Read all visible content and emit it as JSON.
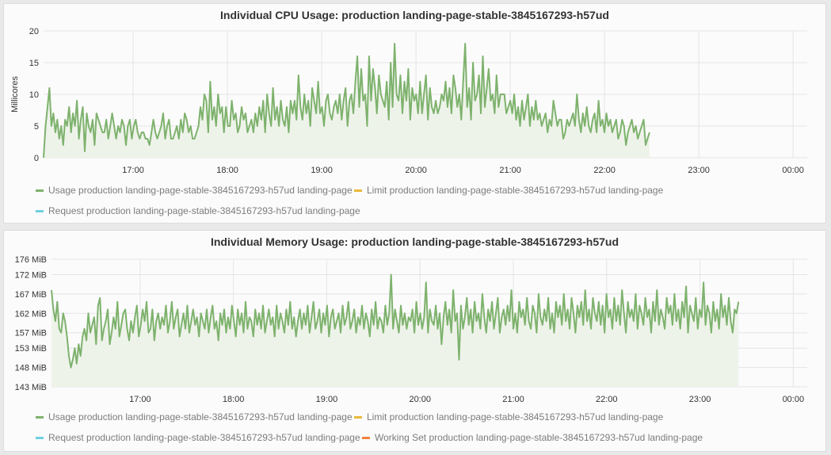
{
  "colors": {
    "usage": "#7eb26d",
    "limit": "#eab839",
    "request": "#6ed0e0",
    "working_set": "#ef843c",
    "fill": "#eef3ea",
    "grid": "#e4e4e4"
  },
  "chart_data": [
    {
      "type": "area",
      "title": "Individual CPU Usage: production landing-page-stable-3845167293-h57ud",
      "ylabel": "Millicores",
      "xlabel": "",
      "ylim": [
        0,
        20
      ],
      "yticks": [
        0,
        5,
        10,
        15,
        20
      ],
      "ytick_labels": [
        "0",
        "5",
        "10",
        "15",
        "20"
      ],
      "xlim": [
        16.05,
        24.15
      ],
      "xticks": [
        17,
        18,
        19,
        20,
        21,
        22,
        23,
        24
      ],
      "xtick_labels": [
        "17:00",
        "18:00",
        "19:00",
        "20:00",
        "21:00",
        "22:00",
        "23:00",
        "00:00"
      ],
      "grid": true,
      "legend": [
        "Usage production landing-page-stable-3845167293-h57ud landing-page",
        "Limit production landing-page-stable-3845167293-h57ud landing-page",
        "Request production landing-page-stable-3845167293-h57ud landing-page"
      ],
      "series": [
        {
          "name": "Usage production landing-page-stable-3845167293-h57ud landing-page",
          "x_start": 16.05,
          "x_step": 0.0208,
          "values": [
            0,
            5,
            8,
            11,
            5,
            7,
            4,
            6,
            3,
            5,
            2,
            6,
            5,
            8,
            4,
            7,
            5,
            9,
            3,
            6,
            8,
            1,
            7,
            5,
            4,
            6,
            2,
            7,
            6,
            5,
            4,
            4,
            6,
            3,
            5,
            7,
            5,
            3,
            5,
            4,
            6,
            5,
            2,
            5,
            6,
            3,
            5,
            6,
            4,
            3,
            4,
            4,
            3,
            3,
            2,
            4,
            6,
            4,
            3,
            4,
            5,
            7,
            3,
            5,
            6,
            3,
            3,
            4,
            5,
            3,
            6,
            4,
            7,
            6,
            4,
            5,
            3,
            3,
            4,
            5,
            8,
            6,
            10,
            9,
            4,
            12,
            6,
            8,
            5,
            10,
            7,
            8,
            4,
            8,
            5,
            5,
            9,
            6,
            7,
            4,
            5,
            8,
            6,
            7,
            4,
            5,
            6,
            4,
            7,
            5,
            8,
            6,
            9,
            4,
            10,
            7,
            5,
            11,
            6,
            8,
            5,
            9,
            6,
            5,
            8,
            4,
            9,
            7,
            9,
            6,
            13,
            8,
            6,
            10,
            7,
            9,
            5,
            11,
            9,
            7,
            12,
            7,
            8,
            5,
            9,
            10,
            7,
            6,
            8,
            9,
            7,
            10,
            6,
            9,
            11,
            5,
            9,
            10,
            7,
            12,
            16,
            8,
            14,
            9,
            10,
            5,
            16,
            9,
            14,
            11,
            7,
            13,
            10,
            9,
            8,
            12,
            6,
            15,
            8,
            18,
            10,
            9,
            13,
            7,
            12,
            9,
            14,
            6,
            11,
            9,
            10,
            7,
            12,
            7,
            10,
            13,
            6,
            11,
            8,
            7,
            9,
            7,
            8,
            10,
            9,
            12,
            8,
            11,
            7,
            13,
            11,
            8,
            10,
            6,
            12,
            18,
            8,
            11,
            6,
            15,
            9,
            10,
            13,
            7,
            16,
            8,
            11,
            14,
            9,
            10,
            7,
            13,
            8,
            10,
            10,
            10,
            7,
            8,
            9,
            7,
            10,
            6,
            8,
            5,
            9,
            6,
            8,
            10,
            5,
            8,
            6,
            9,
            6,
            7,
            5,
            6,
            7,
            4,
            6,
            5,
            9,
            7,
            5,
            6,
            6,
            3,
            4,
            6,
            5,
            6,
            7,
            5,
            10,
            6,
            4,
            7,
            5,
            8,
            5,
            4,
            6,
            7,
            4,
            9,
            5,
            6,
            4,
            7,
            5,
            6,
            4,
            5,
            6,
            3,
            4,
            6,
            5,
            2,
            4,
            5,
            6,
            4,
            5,
            3,
            4,
            5,
            6,
            2,
            3,
            4
          ]
        }
      ]
    },
    {
      "type": "area",
      "title": "Individual Memory Usage: production landing-page-stable-3845167293-h57ud",
      "ylabel": "",
      "xlabel": "",
      "ylim": [
        143,
        176
      ],
      "yticks": [
        143,
        148,
        153,
        157,
        162,
        167,
        172,
        176
      ],
      "ytick_labels": [
        "143 MiB",
        "148 MiB",
        "153 MiB",
        "157 MiB",
        "162 MiB",
        "167 MiB",
        "172 MiB",
        "176 MiB"
      ],
      "xlim": [
        16.05,
        24.15
      ],
      "xticks": [
        17,
        18,
        19,
        20,
        21,
        22,
        23,
        24
      ],
      "xtick_labels": [
        "17:00",
        "18:00",
        "19:00",
        "20:00",
        "21:00",
        "22:00",
        "23:00",
        "00:00"
      ],
      "grid": true,
      "legend": [
        "Usage production landing-page-stable-3845167293-h57ud landing-page",
        "Limit production landing-page-stable-3845167293-h57ud landing-page",
        "Request production landing-page-stable-3845167293-h57ud landing-page",
        "Working Set production landing-page-stable-3845167293-h57ud landing-page"
      ],
      "series": [
        {
          "name": "Usage production landing-page-stable-3845167293-h57ud landing-page",
          "x_start": 16.05,
          "x_step": 0.0208,
          "values": [
            168,
            163,
            160,
            165,
            158,
            157,
            162,
            160,
            156,
            151,
            148,
            150,
            153,
            149,
            154,
            151,
            156,
            158,
            155,
            162,
            157,
            159,
            161,
            154,
            164,
            166,
            155,
            158,
            160,
            163,
            154,
            157,
            161,
            158,
            165,
            156,
            159,
            162,
            163,
            158,
            155,
            160,
            157,
            161,
            164,
            156,
            159,
            163,
            160,
            165,
            157,
            158,
            163,
            155,
            160,
            162,
            158,
            161,
            159,
            164,
            157,
            160,
            165,
            158,
            161,
            163,
            156,
            159,
            162,
            158,
            164,
            157,
            160,
            163,
            159,
            161,
            156,
            162,
            160,
            158,
            163,
            157,
            161,
            164,
            158,
            160,
            155,
            162,
            159,
            163,
            157,
            161,
            158,
            164,
            160,
            156,
            163,
            159,
            162,
            157,
            165,
            158,
            161,
            160,
            156,
            163,
            159,
            162,
            158,
            164,
            157,
            160,
            163,
            159,
            161,
            156,
            164,
            158,
            162,
            160,
            157,
            163,
            159,
            165,
            158,
            161,
            156,
            160,
            163,
            158,
            162,
            159,
            164,
            157,
            161,
            165,
            158,
            160,
            163,
            157,
            162,
            159,
            164,
            156,
            161,
            163,
            158,
            160,
            162,
            157,
            164,
            159,
            161,
            165,
            158,
            160,
            163,
            157,
            161,
            159,
            164,
            158,
            162,
            160,
            156,
            163,
            159,
            165,
            158,
            161,
            160,
            157,
            164,
            159,
            162,
            172,
            158,
            163,
            160,
            157,
            164,
            159,
            162,
            158,
            161,
            160,
            163,
            157,
            165,
            159,
            162,
            158,
            161,
            170,
            157,
            163,
            160,
            159,
            164,
            158,
            162,
            154,
            161,
            165,
            159,
            163,
            157,
            168,
            160,
            162,
            150,
            164,
            158,
            161,
            166,
            159,
            163,
            157,
            165,
            160,
            162,
            158,
            167,
            161,
            157,
            163,
            160,
            165,
            158,
            162,
            166,
            157,
            161,
            163,
            159,
            164,
            160,
            168,
            158,
            162,
            157,
            165,
            161,
            163,
            159,
            166,
            160,
            158,
            164,
            162,
            157,
            167,
            161,
            159,
            163,
            160,
            166,
            158,
            162,
            157,
            165,
            161,
            164,
            159,
            167,
            160,
            163,
            158,
            166,
            162,
            157,
            164,
            161,
            165,
            159,
            168,
            160,
            163,
            158,
            166,
            162,
            160,
            165,
            159,
            164,
            157,
            167,
            161,
            163,
            158,
            166,
            160,
            164,
            159,
            168,
            162,
            157,
            165,
            161,
            163,
            160,
            167,
            158,
            164,
            162,
            159,
            166,
            161,
            163,
            157,
            165,
            160,
            168,
            159,
            163,
            161,
            158,
            166,
            162,
            164,
            159,
            167,
            160,
            163,
            158,
            165,
            161,
            169,
            157,
            164,
            162,
            160,
            166,
            158,
            163,
            161,
            170,
            159,
            164,
            162,
            157,
            165,
            160,
            163,
            158,
            167,
            161,
            164,
            159,
            166,
            160,
            157,
            163,
            162,
            165
          ]
        }
      ]
    }
  ]
}
